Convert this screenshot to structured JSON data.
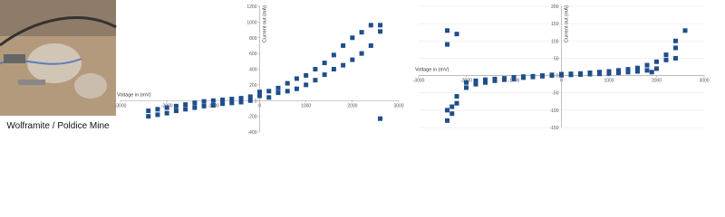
{
  "caption": "Wolframite / Poldice Mine",
  "chart_data": [
    {
      "type": "scatter",
      "x_label": "Voltage in (mV)",
      "y_label": "Current out (mA)",
      "color": "#1f4e8c",
      "grid": false,
      "xlim": [
        -3000,
        3000
      ],
      "ylim": [
        -400,
        1200
      ],
      "xticks": [
        -3000,
        -2000,
        -1000,
        0,
        1000,
        2000,
        3000
      ],
      "yticks": [
        -400,
        -200,
        0,
        200,
        400,
        600,
        800,
        1000,
        1200
      ],
      "x": [
        -2400,
        -2400,
        -2200,
        -2200,
        -2000,
        -2000,
        -1800,
        -1800,
        -1600,
        -1600,
        -1400,
        -1400,
        -1200,
        -1200,
        -1000,
        -1000,
        -800,
        -800,
        -600,
        -600,
        -400,
        -400,
        -200,
        -200,
        0,
        0,
        200,
        200,
        400,
        400,
        600,
        600,
        800,
        800,
        1000,
        1000,
        1200,
        1200,
        1400,
        1400,
        1600,
        1600,
        1800,
        1800,
        2000,
        2000,
        2200,
        2200,
        2400,
        2400,
        2600,
        2600,
        2600
      ],
      "y": [
        -130,
        -200,
        -110,
        -180,
        -90,
        -160,
        -70,
        -130,
        -50,
        -110,
        -30,
        -90,
        -10,
        -70,
        0,
        -60,
        10,
        -40,
        20,
        -30,
        30,
        -20,
        50,
        0,
        110,
        60,
        120,
        40,
        100,
        160,
        120,
        220,
        150,
        280,
        200,
        320,
        260,
        400,
        330,
        480,
        400,
        580,
        450,
        700,
        520,
        800,
        600,
        870,
        700,
        960,
        880,
        960,
        -230
      ]
    },
    {
      "type": "scatter",
      "x_label": "Voltage in (mV)",
      "y_label": "Current out (mA)",
      "color": "#1f4e8c",
      "grid": true,
      "xlim": [
        -3000,
        3000
      ],
      "ylim": [
        -150,
        200
      ],
      "xticks": [
        -3000,
        -2000,
        -1000,
        0,
        1000,
        2000,
        3000
      ],
      "yticks": [
        -150,
        -100,
        -50,
        0,
        50,
        100,
        150,
        200
      ],
      "x": [
        -2400,
        -2400,
        -2300,
        -2300,
        -2200,
        -2200,
        -2000,
        -2000,
        -1800,
        -1800,
        -1600,
        -1600,
        -1400,
        -1400,
        -1200,
        -1200,
        -1000,
        -1000,
        -800,
        -800,
        -600,
        -600,
        -400,
        -400,
        -200,
        -200,
        0,
        0,
        200,
        200,
        400,
        400,
        600,
        600,
        800,
        800,
        1000,
        1000,
        1200,
        1200,
        1400,
        1400,
        1600,
        1600,
        1800,
        1800,
        2000,
        2000,
        2200,
        2200,
        2400,
        2400,
        2400,
        2600,
        -2400,
        -2200,
        -2400,
        1900
      ],
      "y": [
        -130,
        -100,
        -90,
        -110,
        -60,
        -80,
        -20,
        -35,
        -15,
        -25,
        -12,
        -20,
        -10,
        -15,
        -8,
        -12,
        -5,
        -10,
        -3,
        -6,
        -2,
        -4,
        0,
        -2,
        2,
        0,
        4,
        1,
        5,
        2,
        6,
        3,
        8,
        4,
        10,
        5,
        12,
        6,
        15,
        8,
        18,
        10,
        22,
        12,
        30,
        15,
        40,
        20,
        60,
        45,
        80,
        50,
        100,
        130,
        130,
        120,
        90,
        10
      ]
    }
  ]
}
